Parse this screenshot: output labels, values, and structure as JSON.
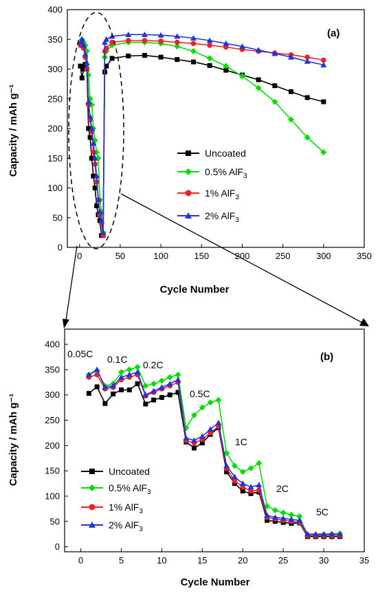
{
  "chart_data": [
    {
      "type": "scatter",
      "panel_label": "(a)",
      "xlabel": "Cycle Number",
      "ylabel": "Capacity / mAh g⁻¹",
      "xlim": [
        -15,
        350
      ],
      "ylim": [
        0,
        400
      ],
      "xticks": [
        "0",
        "50",
        "100",
        "150",
        "200",
        "250",
        "300",
        "350"
      ],
      "yticks": [
        "0",
        "50",
        "100",
        "150",
        "200",
        "250",
        "300",
        "350",
        "400"
      ],
      "legend_position": "center-right",
      "series": [
        {
          "name": "Uncoated",
          "color": "#000000",
          "marker": "square",
          "x": [
            1,
            3,
            5,
            7,
            9,
            11,
            13,
            15,
            17,
            19,
            21,
            23,
            25,
            27,
            29,
            31,
            33,
            40,
            60,
            80,
            100,
            120,
            140,
            160,
            180,
            200,
            220,
            240,
            260,
            280,
            300
          ],
          "y": [
            305,
            285,
            300,
            308,
            300,
            200,
            185,
            150,
            120,
            100,
            70,
            55,
            45,
            20,
            20,
            295,
            305,
            318,
            322,
            323,
            320,
            316,
            312,
            306,
            298,
            290,
            282,
            272,
            262,
            252,
            245
          ]
        },
        {
          "name": "0.5% AlF3",
          "color": "#00dd00",
          "marker": "diamond",
          "x": [
            1,
            3,
            5,
            7,
            9,
            11,
            13,
            15,
            17,
            19,
            21,
            23,
            25,
            27,
            29,
            31,
            33,
            40,
            60,
            80,
            100,
            120,
            140,
            160,
            180,
            200,
            220,
            240,
            260,
            280,
            300
          ],
          "y": [
            340,
            350,
            345,
            340,
            330,
            290,
            250,
            240,
            200,
            180,
            160,
            150,
            80,
            60,
            25,
            320,
            330,
            340,
            345,
            345,
            343,
            338,
            330,
            318,
            305,
            288,
            268,
            245,
            215,
            185,
            160
          ]
        },
        {
          "name": "1% AlF3",
          "color": "#ee2222",
          "marker": "circle",
          "x": [
            1,
            3,
            5,
            7,
            9,
            11,
            13,
            15,
            17,
            19,
            21,
            23,
            25,
            27,
            29,
            31,
            33,
            40,
            60,
            80,
            100,
            120,
            140,
            160,
            180,
            200,
            220,
            240,
            260,
            280,
            300
          ],
          "y": [
            340,
            345,
            335,
            320,
            300,
            240,
            215,
            195,
            160,
            140,
            110,
            80,
            55,
            40,
            20,
            330,
            335,
            345,
            348,
            348,
            347,
            345,
            343,
            340,
            337,
            333,
            330,
            327,
            324,
            320,
            315
          ]
        },
        {
          "name": "2% AlF3",
          "color": "#2233dd",
          "marker": "triangle",
          "x": [
            1,
            3,
            5,
            7,
            9,
            11,
            13,
            15,
            17,
            19,
            21,
            23,
            25,
            27,
            29,
            31,
            33,
            40,
            60,
            80,
            100,
            120,
            140,
            160,
            180,
            200,
            220,
            240,
            260,
            280,
            300
          ],
          "y": [
            345,
            350,
            340,
            325,
            310,
            245,
            220,
            200,
            175,
            150,
            120,
            80,
            60,
            45,
            25,
            345,
            350,
            355,
            358,
            358,
            357,
            355,
            352,
            348,
            343,
            338,
            332,
            326,
            320,
            313,
            307
          ]
        }
      ]
    },
    {
      "type": "line",
      "panel_label": "(b)",
      "xlabel": "Cycle Number",
      "ylabel": "Capacity / mAh g⁻¹",
      "xlim": [
        -2,
        35
      ],
      "ylim": [
        -10,
        430
      ],
      "xticks": [
        "0",
        "5",
        "10",
        "15",
        "20",
        "25",
        "30",
        "35"
      ],
      "yticks": [
        "0",
        "50",
        "100",
        "150",
        "200",
        "250",
        "300",
        "350",
        "400"
      ],
      "legend_position": "bottom-left",
      "rate_labels": [
        "0.05C",
        "0.1C",
        "0.2C",
        "0.5C",
        "1C",
        "2C",
        "5C"
      ],
      "x": [
        1,
        2,
        3,
        4,
        5,
        6,
        7,
        8,
        9,
        10,
        11,
        12,
        13,
        14,
        15,
        16,
        17,
        18,
        19,
        20,
        21,
        22,
        23,
        24,
        25,
        26,
        27,
        28,
        29,
        30,
        31,
        32
      ],
      "series": [
        {
          "name": "Uncoated",
          "color": "#000000",
          "marker": "square",
          "values": [
            303,
            316,
            283,
            302,
            310,
            310,
            322,
            282,
            290,
            295,
            300,
            305,
            207,
            195,
            205,
            222,
            235,
            148,
            125,
            110,
            105,
            108,
            52,
            50,
            48,
            46,
            47,
            20,
            20,
            20,
            20,
            20
          ]
        },
        {
          "name": "0.5% AlF3",
          "color": "#00dd00",
          "marker": "diamond",
          "values": [
            340,
            348,
            318,
            322,
            345,
            350,
            355,
            318,
            322,
            328,
            335,
            340,
            235,
            260,
            275,
            285,
            290,
            185,
            160,
            148,
            155,
            165,
            80,
            72,
            67,
            63,
            60,
            22,
            23,
            24,
            25,
            26
          ]
        },
        {
          "name": "1% AlF3",
          "color": "#ee2222",
          "marker": "circle",
          "values": [
            335,
            340,
            312,
            315,
            330,
            335,
            340,
            298,
            305,
            312,
            318,
            325,
            210,
            205,
            212,
            225,
            238,
            155,
            130,
            118,
            110,
            112,
            58,
            55,
            52,
            50,
            48,
            22,
            22,
            22,
            22,
            22
          ]
        },
        {
          "name": "2% AlF3",
          "color": "#2233dd",
          "marker": "triangle",
          "values": [
            340,
            350,
            315,
            318,
            335,
            340,
            345,
            300,
            308,
            315,
            322,
            330,
            215,
            210,
            218,
            232,
            245,
            160,
            138,
            125,
            118,
            122,
            62,
            58,
            56,
            54,
            52,
            25,
            25,
            25,
            25,
            25
          ]
        }
      ]
    }
  ]
}
